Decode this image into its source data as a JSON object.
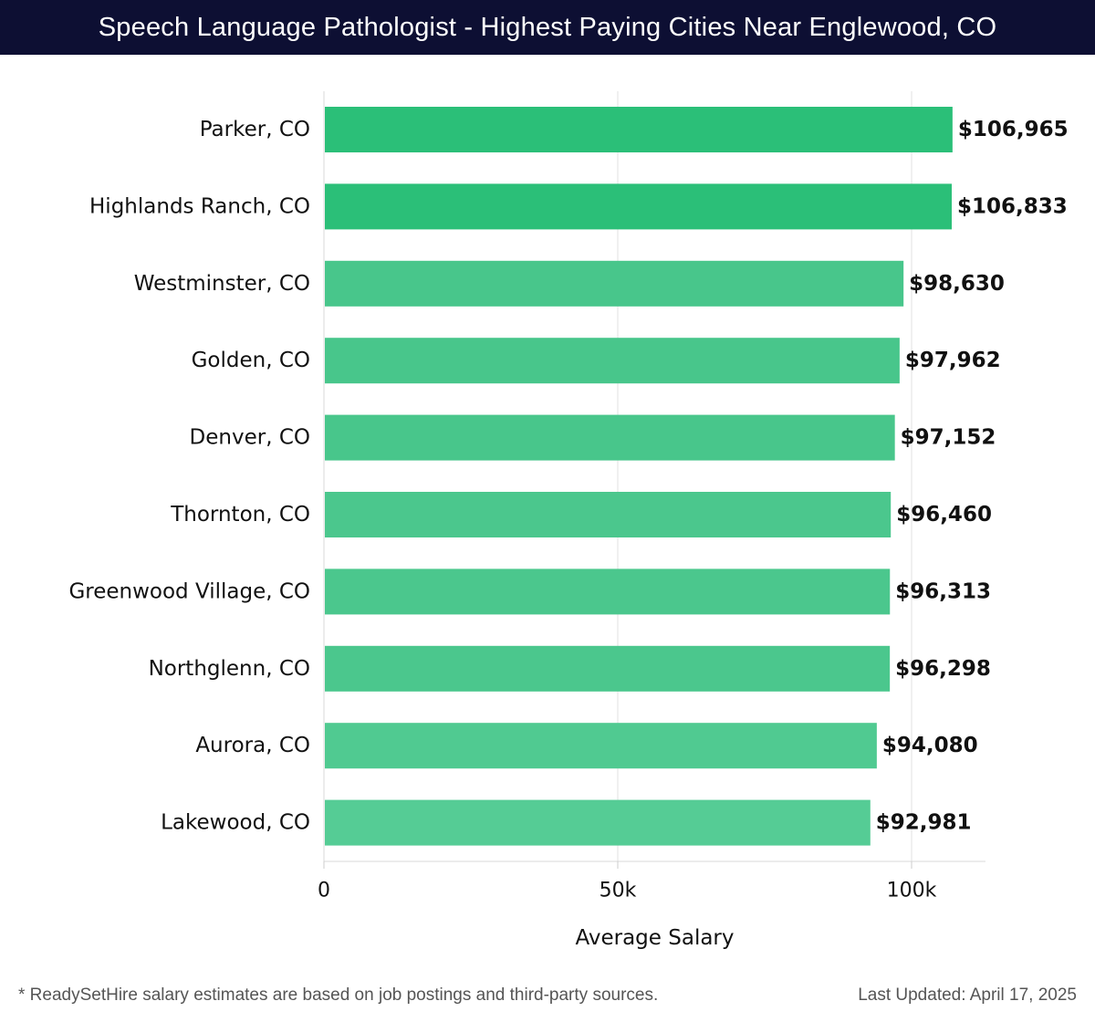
{
  "header": {
    "title": "Speech Language Pathologist - Highest Paying Cities Near Englewood, CO"
  },
  "chart_data": {
    "type": "bar",
    "orientation": "horizontal",
    "categories": [
      "Parker, CO",
      "Highlands Ranch, CO",
      "Westminster, CO",
      "Golden, CO",
      "Denver, CO",
      "Thornton, CO",
      "Greenwood Village, CO",
      "Northglenn, CO",
      "Aurora, CO",
      "Lakewood, CO"
    ],
    "values": [
      106965,
      106833,
      98630,
      97962,
      97152,
      96460,
      96313,
      96298,
      94080,
      92981
    ],
    "value_labels": [
      "$106,965",
      "$106,833",
      "$98,630",
      "$97,962",
      "$97,152",
      "$96,460",
      "$96,313",
      "$96,298",
      "$94,080",
      "$92,981"
    ],
    "bar_colors": [
      "#2bbf78",
      "#2bbf78",
      "#48c68b",
      "#48c68b",
      "#48c68b",
      "#4bc78d",
      "#4bc78d",
      "#4bc78d",
      "#50ca91",
      "#55cc95"
    ],
    "xlabel": "Average Salary",
    "ylabel": "",
    "xlim": [
      0,
      112500
    ],
    "xticks": [
      0,
      50000,
      100000
    ],
    "xtick_labels": [
      "0",
      "50k",
      "100k"
    ],
    "grid": true
  },
  "footer": {
    "note": "* ReadySetHire salary estimates are based on job postings and third-party sources.",
    "updated": "Last Updated: April 17, 2025"
  }
}
